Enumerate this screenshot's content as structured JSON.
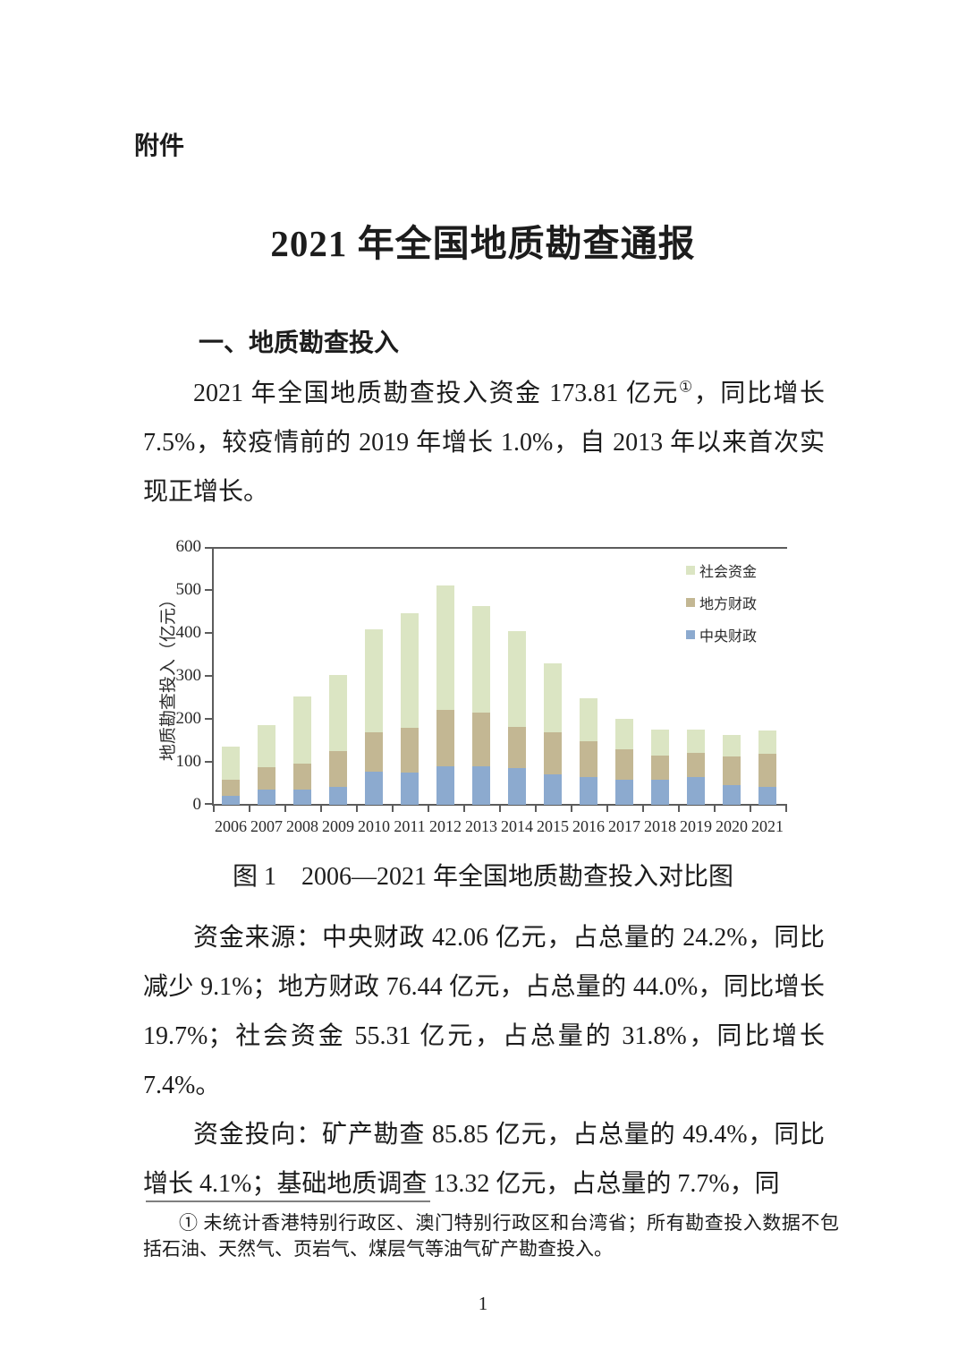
{
  "page": {
    "attachment_label": "附件",
    "title": "2021 年全国地质勘查通报",
    "section_heading": "一、地质勘查投入",
    "page_number": "1"
  },
  "paragraphs": {
    "p1_before": "2021 年全国地质勘查投入资金 173.81 亿元",
    "p1_sup": "①",
    "p1_after": "，同比增长 7.5%，较疫情前的 2019 年增长 1.0%，自 2013 年以来首次实现正增长。",
    "p2": "资金来源：中央财政 42.06 亿元，占总量的 24.2%，同比减少 9.1%；地方财政 76.44 亿元，占总量的 44.0%，同比增长 19.7%；社会资金 55.31 亿元，占总量的 31.8%，同比增长 7.4%。",
    "p3": "资金投向：矿产勘查 85.85 亿元，占总量的 49.4%，同比增长 4.1%；基础地质调查 13.32 亿元，占总量的 7.7%，同"
  },
  "figure": {
    "caption": "图 1　2006—2021 年全国地质勘查投入对比图"
  },
  "chart_data": {
    "type": "bar",
    "stacked": true,
    "title": "",
    "xlabel": "",
    "ylabel": "地质勘查投入（亿元）",
    "ylim": [
      0,
      600
    ],
    "ytick_interval": 100,
    "grid": false,
    "legend_position": "top-right",
    "categories": [
      "2006",
      "2007",
      "2008",
      "2009",
      "2010",
      "2011",
      "2012",
      "2013",
      "2014",
      "2015",
      "2016",
      "2017",
      "2018",
      "2019",
      "2020",
      "2021"
    ],
    "series": [
      {
        "name": "中央财政",
        "color": "#8caacf",
        "values": [
          20,
          35,
          35,
          42,
          78,
          75,
          90,
          90,
          85,
          70,
          64,
          59,
          59,
          64,
          46,
          42.06
        ]
      },
      {
        "name": "地方财政",
        "color": "#c3b793",
        "values": [
          38,
          52,
          60,
          83,
          90,
          105,
          130,
          125,
          97,
          99,
          83,
          71,
          55,
          56,
          66,
          76.44
        ]
      },
      {
        "name": "社会资金",
        "color": "#dbe5c3",
        "values": [
          77,
          98,
          158,
          178,
          240,
          266,
          290,
          247,
          222,
          161,
          101,
          70,
          62,
          54,
          50,
          55.31
        ]
      }
    ],
    "legend_items": [
      {
        "label": "社会资金",
        "color": "#dbe5c3"
      },
      {
        "label": "地方财政",
        "color": "#c3b793"
      },
      {
        "label": "中央财政",
        "color": "#8caacf"
      }
    ]
  },
  "footnote": {
    "marker": "①",
    "text": " 未统计香港特别行政区、澳门特别行政区和台湾省；所有勘查投入数据不包括石油、天然气、页岩气、煤层气等油气矿产勘查投入。"
  }
}
